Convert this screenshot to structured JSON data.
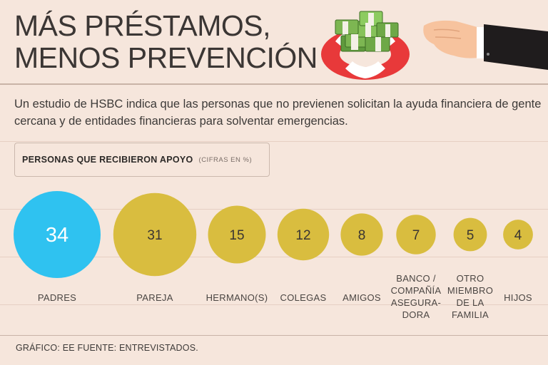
{
  "header": {
    "title_line1": "MÁS PRÉSTAMOS,",
    "title_line2": "MENOS PREVENCIÓN"
  },
  "intro": "Un estudio de HSBC indica que las personas que no previenen solicitan la ayuda financiera de gente cercana y de entidades financieras para solventar emergencias.",
  "legend": {
    "main": "PERSONAS QUE RECIBIERON APOYO",
    "sub": "(CIFRAS EN %)"
  },
  "footer": "GRÁFICO: EE  FUENTE: ENTREVISTADOS.",
  "colors": {
    "highlight": "#2fc2f0",
    "bubble": "#d9bd3f",
    "background": "#f6e6dc",
    "text": "#3b3634"
  },
  "chart_data": {
    "type": "bubble",
    "title": "PERSONAS QUE RECIBIERON APOYO",
    "unit": "%",
    "categories": [
      [
        "PADRES"
      ],
      [
        "PAREJA"
      ],
      [
        "HERMANO(S)"
      ],
      [
        "COLEGAS"
      ],
      [
        "AMIGOS"
      ],
      [
        "BANCO /",
        "COMPAÑÍA",
        "ASEGURA-",
        "DORA"
      ],
      [
        "OTRO",
        "MIEMBRO",
        "DE LA",
        "FAMILIA"
      ],
      [
        "HIJOS"
      ]
    ],
    "values": [
      34,
      31,
      15,
      12,
      8,
      7,
      5,
      4
    ],
    "highlight_index": 0
  }
}
